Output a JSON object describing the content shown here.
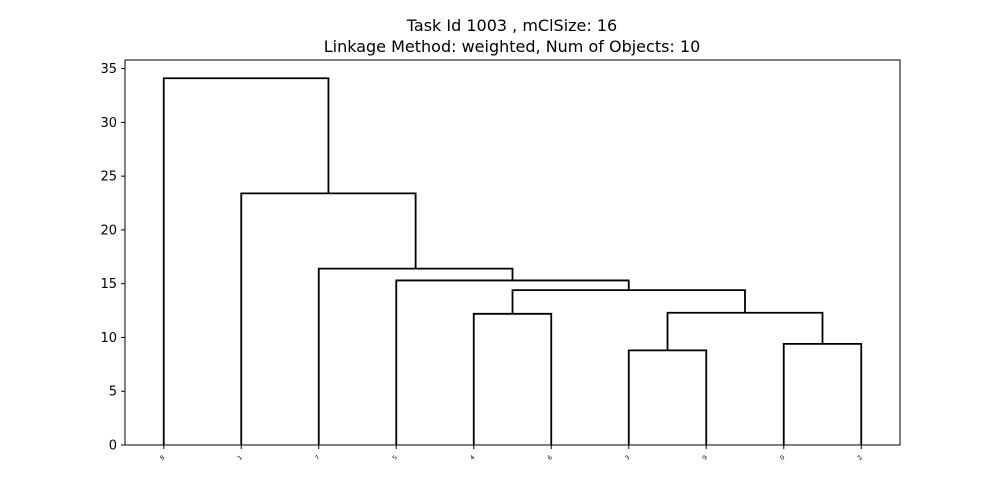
{
  "chart_data": {
    "type": "dendrogram",
    "title_lines": [
      "Task Id 1003 , mClSize: 16",
      "Linkage Method: weighted, Num of Objects: 10"
    ],
    "leaves": [
      "8",
      "1",
      "7",
      "5",
      "4",
      "6",
      "3",
      "9",
      "0",
      "2"
    ],
    "ylim": [
      0,
      35.8
    ],
    "yticks": [
      0,
      5,
      10,
      15,
      20,
      25,
      30,
      35
    ],
    "merges": [
      {
        "left": "leaf:6",
        "right": "leaf:7",
        "height": 8.8
      },
      {
        "left": "leaf:8",
        "right": "leaf:9",
        "height": 9.4
      },
      {
        "left": "leaf:4",
        "right": "leaf:5",
        "height": 12.2
      },
      {
        "left": "node:0",
        "right": "node:1",
        "height": 12.3
      },
      {
        "left": "node:2",
        "right": "node:3",
        "height": 14.4
      },
      {
        "left": "leaf:3",
        "right": "node:4",
        "height": 15.3
      },
      {
        "left": "leaf:2",
        "right": "node:5",
        "height": 16.4
      },
      {
        "left": "leaf:1",
        "right": "node:6",
        "height": 23.4
      },
      {
        "left": "leaf:0",
        "right": "node:7",
        "height": 34.1
      }
    ],
    "line_color": "#000000"
  }
}
